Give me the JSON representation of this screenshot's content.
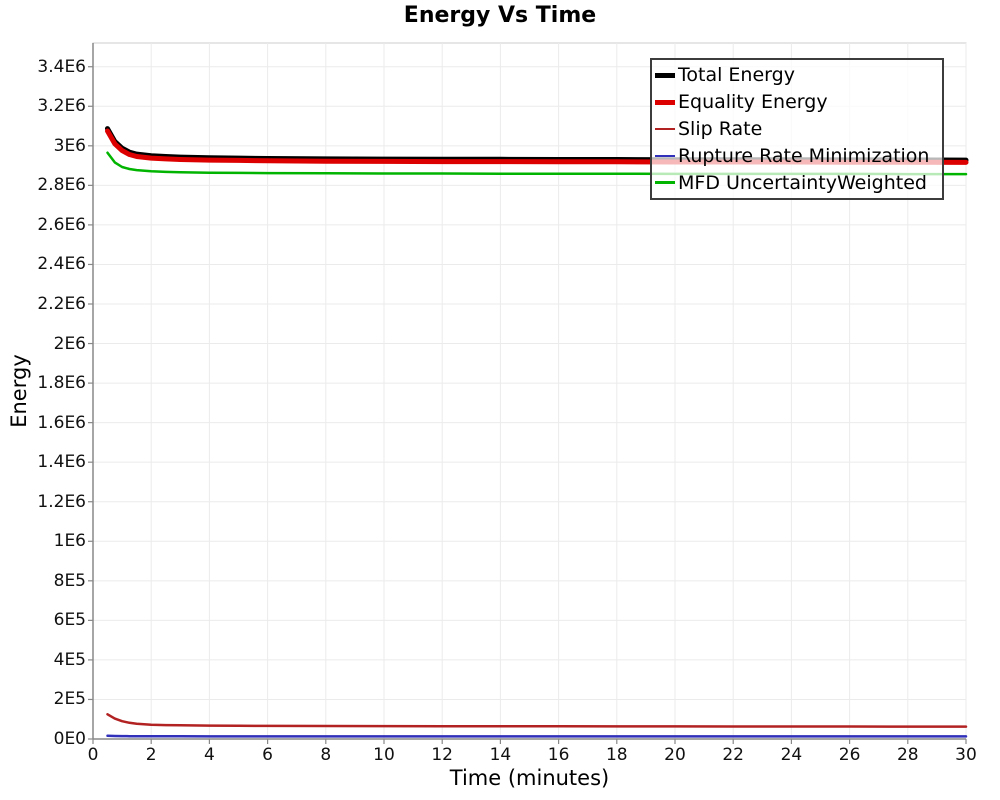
{
  "chart_data": {
    "type": "line",
    "title": "Energy Vs Time",
    "xlabel": "Time (minutes)",
    "ylabel": "Energy",
    "xlim": [
      0,
      30
    ],
    "ylim": [
      0,
      3520000
    ],
    "grid": true,
    "legend_position": "top-right",
    "x_ticks": [
      0,
      2,
      4,
      6,
      8,
      10,
      12,
      14,
      16,
      18,
      20,
      22,
      24,
      26,
      28,
      30
    ],
    "y_ticks": [
      {
        "value": 0,
        "label": "0E0"
      },
      {
        "value": 200000,
        "label": "2E5"
      },
      {
        "value": 400000,
        "label": "4E5"
      },
      {
        "value": 600000,
        "label": "6E5"
      },
      {
        "value": 800000,
        "label": "8E5"
      },
      {
        "value": 1000000,
        "label": "1E6"
      },
      {
        "value": 1200000,
        "label": "1.2E6"
      },
      {
        "value": 1400000,
        "label": "1.4E6"
      },
      {
        "value": 1600000,
        "label": "1.6E6"
      },
      {
        "value": 1800000,
        "label": "1.8E6"
      },
      {
        "value": 2000000,
        "label": "2E6"
      },
      {
        "value": 2200000,
        "label": "2.2E6"
      },
      {
        "value": 2400000,
        "label": "2.4E6"
      },
      {
        "value": 2600000,
        "label": "2.6E6"
      },
      {
        "value": 2800000,
        "label": "2.8E6"
      },
      {
        "value": 3000000,
        "label": "3E6"
      },
      {
        "value": 3200000,
        "label": "3.2E6"
      },
      {
        "value": 3400000,
        "label": "3.4E6"
      }
    ],
    "colors": {
      "grid": "#ebebeb",
      "axis": "#888888",
      "plot_border": "#cccccc",
      "legend_border": "#3c3c3c"
    },
    "x_samples": [
      0.5,
      0.75,
      1,
      1.25,
      1.5,
      2,
      2.5,
      3,
      4,
      5,
      6,
      8,
      10,
      12,
      14,
      16,
      18,
      20,
      22,
      24,
      26,
      28,
      30
    ],
    "series": [
      {
        "name": "Total Energy",
        "color": "#000000",
        "stroke_width": 5,
        "y": [
          3087000,
          3022000,
          2988000,
          2968000,
          2958000,
          2950000,
          2946000,
          2943000,
          2940000,
          2938000,
          2936000,
          2934000,
          2933000,
          2932000,
          2932000,
          2931000,
          2931000,
          2930000,
          2930000,
          2930000,
          2929000,
          2929000,
          2928000
        ]
      },
      {
        "name": "Equality Energy",
        "color": "#dd0000",
        "stroke_width": 5,
        "y": [
          3075000,
          3010000,
          2976000,
          2956000,
          2946000,
          2938000,
          2934000,
          2931000,
          2928000,
          2926000,
          2924000,
          2922000,
          2921000,
          2920000,
          2920000,
          2919000,
          2919000,
          2918000,
          2918000,
          2918000,
          2917000,
          2917000,
          2916000
        ]
      },
      {
        "name": "Slip Rate",
        "color": "#b22222",
        "stroke_width": 2.5,
        "y": [
          125000,
          103000,
          90000,
          82000,
          77500,
          72500,
          70500,
          69200,
          67800,
          67000,
          66400,
          65500,
          65000,
          64600,
          64300,
          64000,
          63800,
          63600,
          63400,
          63200,
          63000,
          62800,
          62600
        ]
      },
      {
        "name": "Rupture Rate Minimization",
        "color": "#3030bb",
        "stroke_width": 2.5,
        "y": [
          16000,
          15000,
          14500,
          14200,
          14000,
          13800,
          13600,
          13500,
          13400,
          13300,
          13250,
          13200,
          13150,
          13100,
          13080,
          13060,
          13040,
          13020,
          13000,
          12980,
          12960,
          12940,
          12920
        ]
      },
      {
        "name": "MFD UncertaintyWeighted",
        "color": "#00b400",
        "stroke_width": 2.5,
        "y": [
          2965000,
          2916000,
          2893000,
          2883000,
          2877000,
          2871000,
          2868000,
          2866000,
          2864000,
          2863000,
          2862000,
          2861000,
          2860000,
          2860000,
          2859000,
          2859000,
          2859000,
          2858000,
          2858000,
          2858000,
          2858000,
          2857000,
          2857000
        ]
      }
    ]
  }
}
